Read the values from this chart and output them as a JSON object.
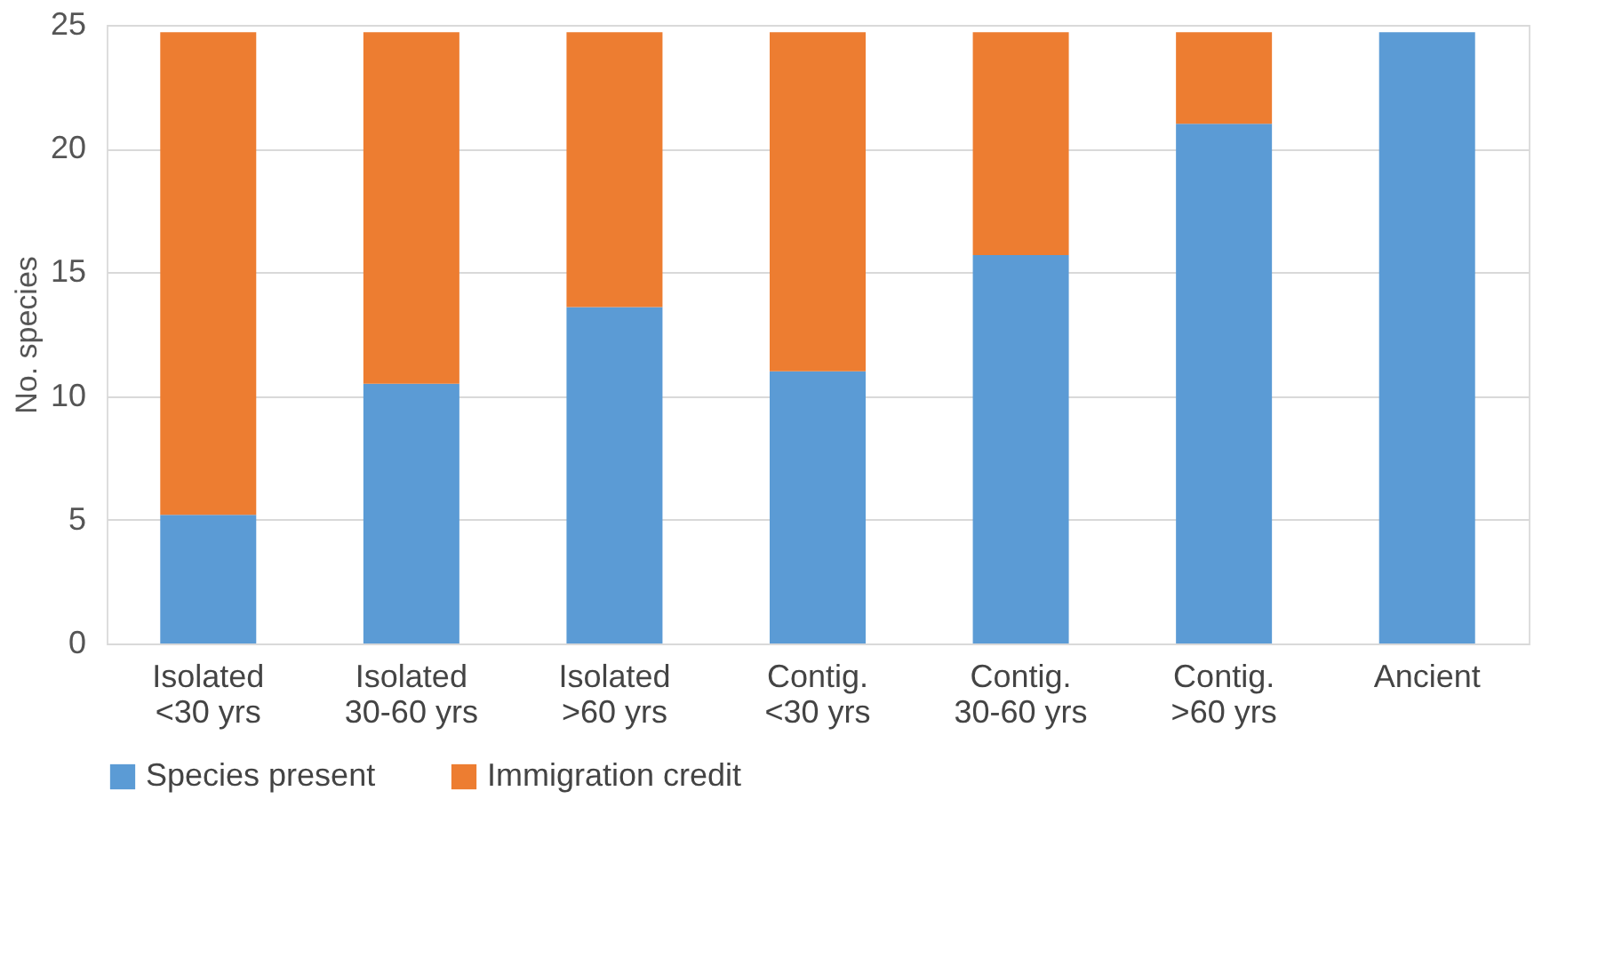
{
  "chart_data": {
    "type": "bar",
    "stacked": true,
    "ylabel": "No. species",
    "categories": [
      "Isolated\n<30 yrs",
      "Isolated\n30-60 yrs",
      "Isolated\n>60 yrs",
      "Contig.\n<30 yrs",
      "Contig.\n30-60 yrs",
      "Contig.\n>60 yrs",
      "Ancient"
    ],
    "series": [
      {
        "name": "Species present",
        "color": "#5b9bd5",
        "values": [
          5.2,
          10.5,
          13.6,
          11.0,
          15.7,
          21.0,
          24.7
        ]
      },
      {
        "name": "Immigration credit",
        "color": "#ed7d31",
        "values": [
          19.5,
          14.2,
          11.1,
          13.7,
          9.0,
          3.7,
          0
        ]
      }
    ],
    "ylim": [
      0,
      25
    ],
    "yticks": [
      0,
      5,
      10,
      15,
      20,
      25
    ],
    "grid": "y",
    "legend": "bottom"
  }
}
